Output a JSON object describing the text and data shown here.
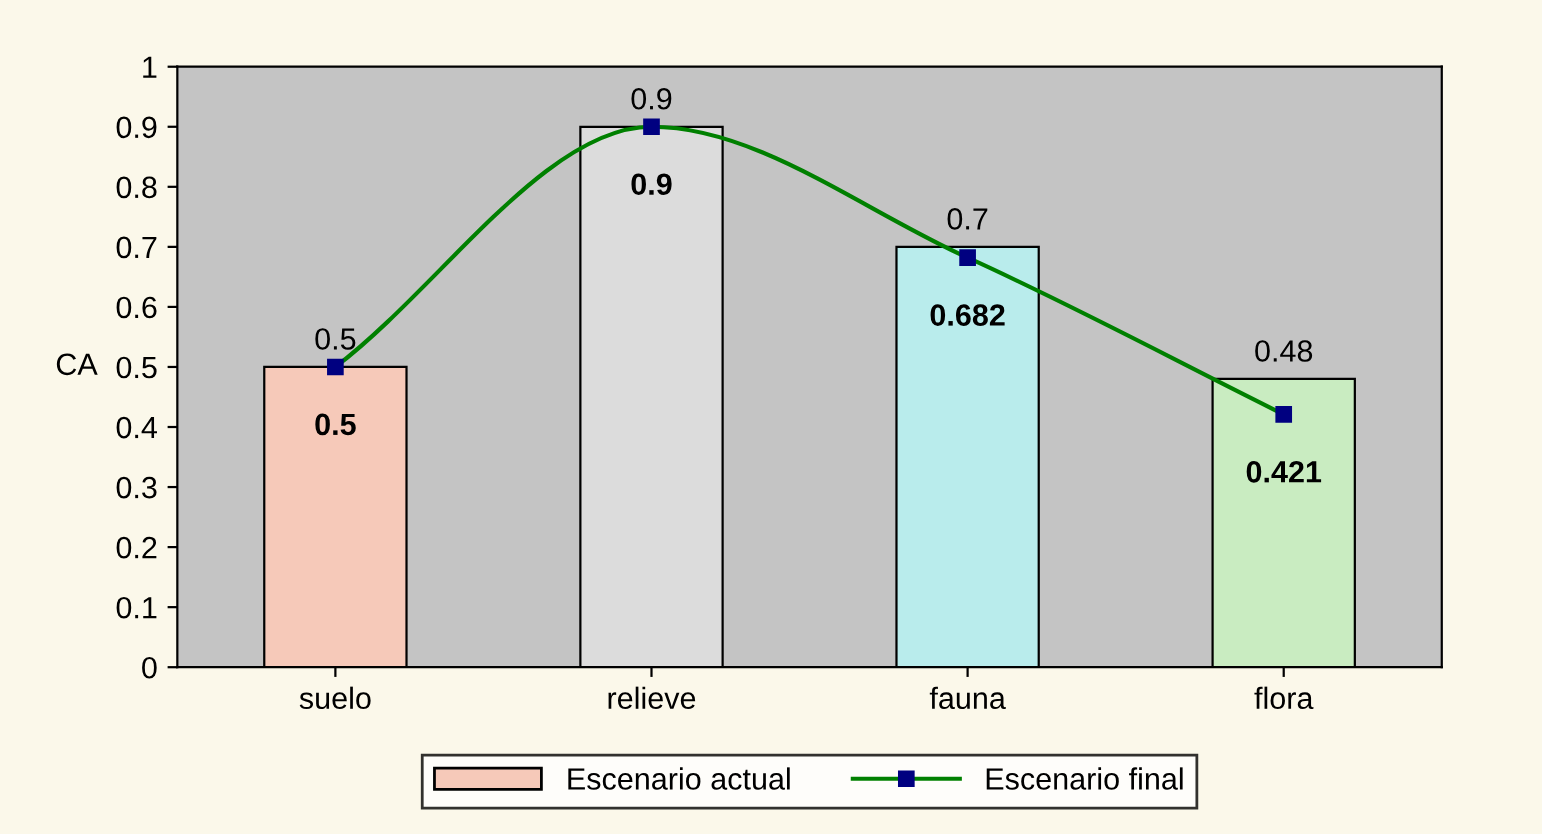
{
  "chart_data": {
    "type": "bar",
    "ylabel": "CA",
    "categories": [
      "suelo",
      "relieve",
      "fauna",
      "flora"
    ],
    "series": [
      {
        "name": "Escenario actual",
        "colors": [
          "#f6c9b9",
          "#dcdcdc",
          "#b9ecec",
          "#c9ecc1"
        ],
        "color": "#f6c9b9",
        "values": [
          0.5,
          0.9,
          0.7,
          0.48
        ]
      },
      {
        "name": "Escenario final",
        "type": "line",
        "color": "#008000",
        "marker": "square",
        "values": [
          0.5,
          0.9,
          0.682,
          0.421
        ]
      }
    ],
    "ylim": [
      0,
      1
    ],
    "yticks": [
      0,
      0.1,
      0.2,
      0.3,
      0.4,
      0.5,
      0.6,
      0.7,
      0.8,
      0.9,
      1
    ],
    "data_labels": true,
    "legend": "bottom"
  }
}
